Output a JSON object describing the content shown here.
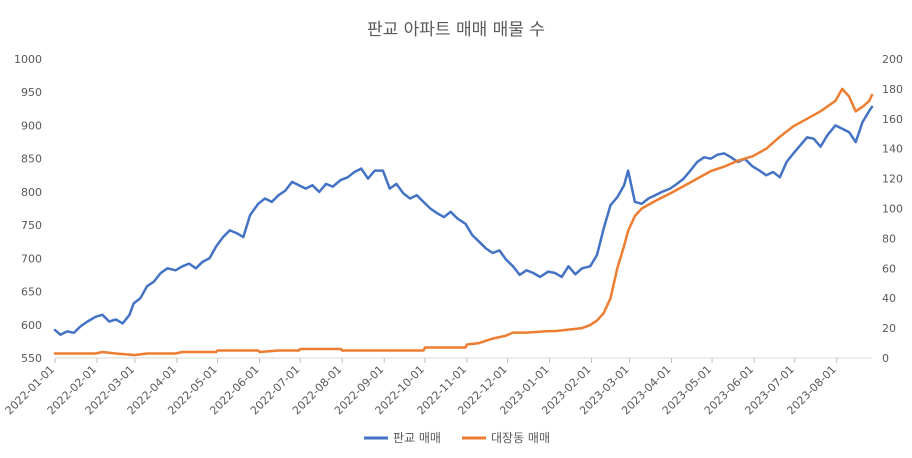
{
  "chart_data": {
    "type": "line",
    "title": "판교 아파트 매매 매물 수",
    "y_left": {
      "min": 550,
      "max": 1000,
      "ticks": [
        550,
        600,
        650,
        700,
        750,
        800,
        850,
        900,
        950,
        1000
      ]
    },
    "y_right": {
      "min": 0,
      "max": 200,
      "ticks": [
        0,
        20,
        40,
        60,
        80,
        100,
        120,
        140,
        160,
        180,
        200
      ]
    },
    "x_range": [
      "2022-01-01",
      "2023-08-27"
    ],
    "x_ticks": [
      "2022-01-01",
      "2022-02-01",
      "2022-03-01",
      "2022-04-01",
      "2022-05-01",
      "2022-06-01",
      "2022-07-01",
      "2022-08-01",
      "2022-09-01",
      "2022-10-01",
      "2022-11-01",
      "2022-12-01",
      "2023-01-01",
      "2023-02-01",
      "2023-03-01",
      "2023-04-01",
      "2023-05-01",
      "2023-06-01",
      "2023-07-01",
      "2023-08-01"
    ],
    "legend_position": "bottom",
    "grid": false,
    "series": [
      {
        "name": "판교 매매",
        "axis": "left",
        "color": "#4472C4",
        "points": [
          [
            "2022-01-01",
            592
          ],
          [
            "2022-01-05",
            585
          ],
          [
            "2022-01-10",
            590
          ],
          [
            "2022-01-15",
            588
          ],
          [
            "2022-01-20",
            598
          ],
          [
            "2022-01-25",
            605
          ],
          [
            "2022-01-31",
            612
          ],
          [
            "2022-02-05",
            615
          ],
          [
            "2022-02-10",
            605
          ],
          [
            "2022-02-15",
            608
          ],
          [
            "2022-02-20",
            602
          ],
          [
            "2022-02-25",
            615
          ],
          [
            "2022-02-28",
            632
          ],
          [
            "2022-03-05",
            640
          ],
          [
            "2022-03-10",
            658
          ],
          [
            "2022-03-15",
            665
          ],
          [
            "2022-03-20",
            678
          ],
          [
            "2022-03-25",
            685
          ],
          [
            "2022-03-31",
            682
          ],
          [
            "2022-04-05",
            688
          ],
          [
            "2022-04-10",
            692
          ],
          [
            "2022-04-15",
            685
          ],
          [
            "2022-04-20",
            695
          ],
          [
            "2022-04-25",
            700
          ],
          [
            "2022-04-30",
            718
          ],
          [
            "2022-05-05",
            732
          ],
          [
            "2022-05-10",
            742
          ],
          [
            "2022-05-15",
            738
          ],
          [
            "2022-05-20",
            732
          ],
          [
            "2022-05-25",
            765
          ],
          [
            "2022-05-31",
            782
          ],
          [
            "2022-06-05",
            790
          ],
          [
            "2022-06-10",
            785
          ],
          [
            "2022-06-15",
            795
          ],
          [
            "2022-06-20",
            802
          ],
          [
            "2022-06-25",
            815
          ],
          [
            "2022-06-30",
            810
          ],
          [
            "2022-07-05",
            805
          ],
          [
            "2022-07-10",
            810
          ],
          [
            "2022-07-15",
            800
          ],
          [
            "2022-07-20",
            812
          ],
          [
            "2022-07-25",
            808
          ],
          [
            "2022-07-31",
            818
          ],
          [
            "2022-08-05",
            822
          ],
          [
            "2022-08-10",
            830
          ],
          [
            "2022-08-15",
            835
          ],
          [
            "2022-08-20",
            820
          ],
          [
            "2022-08-25",
            832
          ],
          [
            "2022-08-31",
            832
          ],
          [
            "2022-09-05",
            805
          ],
          [
            "2022-09-10",
            812
          ],
          [
            "2022-09-15",
            798
          ],
          [
            "2022-09-20",
            790
          ],
          [
            "2022-09-25",
            795
          ],
          [
            "2022-09-30",
            785
          ],
          [
            "2022-10-05",
            775
          ],
          [
            "2022-10-10",
            768
          ],
          [
            "2022-10-15",
            762
          ],
          [
            "2022-10-20",
            770
          ],
          [
            "2022-10-25",
            760
          ],
          [
            "2022-10-31",
            752
          ],
          [
            "2022-11-05",
            735
          ],
          [
            "2022-11-10",
            725
          ],
          [
            "2022-11-15",
            715
          ],
          [
            "2022-11-20",
            708
          ],
          [
            "2022-11-25",
            712
          ],
          [
            "2022-11-30",
            698
          ],
          [
            "2022-12-05",
            688
          ],
          [
            "2022-12-10",
            675
          ],
          [
            "2022-12-15",
            682
          ],
          [
            "2022-12-20",
            678
          ],
          [
            "2022-12-25",
            672
          ],
          [
            "2022-12-31",
            680
          ],
          [
            "2023-01-05",
            678
          ],
          [
            "2023-01-10",
            672
          ],
          [
            "2023-01-15",
            688
          ],
          [
            "2023-01-20",
            676
          ],
          [
            "2023-01-25",
            685
          ],
          [
            "2023-01-31",
            688
          ],
          [
            "2023-02-05",
            705
          ],
          [
            "2023-02-10",
            745
          ],
          [
            "2023-02-15",
            780
          ],
          [
            "2023-02-20",
            792
          ],
          [
            "2023-02-25",
            810
          ],
          [
            "2023-02-28",
            832
          ],
          [
            "2023-03-05",
            785
          ],
          [
            "2023-03-10",
            782
          ],
          [
            "2023-03-15",
            790
          ],
          [
            "2023-03-20",
            795
          ],
          [
            "2023-03-25",
            800
          ],
          [
            "2023-03-31",
            805
          ],
          [
            "2023-04-05",
            812
          ],
          [
            "2023-04-10",
            820
          ],
          [
            "2023-04-15",
            832
          ],
          [
            "2023-04-20",
            845
          ],
          [
            "2023-04-25",
            852
          ],
          [
            "2023-04-30",
            850
          ],
          [
            "2023-05-05",
            856
          ],
          [
            "2023-05-10",
            858
          ],
          [
            "2023-05-15",
            852
          ],
          [
            "2023-05-20",
            845
          ],
          [
            "2023-05-25",
            850
          ],
          [
            "2023-05-31",
            838
          ],
          [
            "2023-06-05",
            832
          ],
          [
            "2023-06-10",
            825
          ],
          [
            "2023-06-15",
            830
          ],
          [
            "2023-06-20",
            822
          ],
          [
            "2023-06-25",
            845
          ],
          [
            "2023-06-30",
            858
          ],
          [
            "2023-07-05",
            870
          ],
          [
            "2023-07-10",
            882
          ],
          [
            "2023-07-15",
            880
          ],
          [
            "2023-07-20",
            868
          ],
          [
            "2023-07-25",
            885
          ],
          [
            "2023-07-31",
            900
          ],
          [
            "2023-08-05",
            895
          ],
          [
            "2023-08-10",
            890
          ],
          [
            "2023-08-15",
            875
          ],
          [
            "2023-08-20",
            905
          ],
          [
            "2023-08-25",
            922
          ],
          [
            "2023-08-27",
            928
          ]
        ]
      },
      {
        "name": "대장동 매매",
        "axis": "right",
        "color": "#ED7D31",
        "points": [
          [
            "2022-01-01",
            3
          ],
          [
            "2022-01-15",
            3
          ],
          [
            "2022-01-31",
            3
          ],
          [
            "2022-02-05",
            4
          ],
          [
            "2022-02-15",
            3
          ],
          [
            "2022-02-28",
            2
          ],
          [
            "2022-03-01",
            2
          ],
          [
            "2022-03-10",
            3
          ],
          [
            "2022-03-31",
            3
          ],
          [
            "2022-04-05",
            4
          ],
          [
            "2022-04-30",
            4
          ],
          [
            "2022-05-01",
            5
          ],
          [
            "2022-05-31",
            5
          ],
          [
            "2022-06-01",
            4
          ],
          [
            "2022-06-15",
            5
          ],
          [
            "2022-06-30",
            5
          ],
          [
            "2022-07-01",
            6
          ],
          [
            "2022-07-31",
            6
          ],
          [
            "2022-08-01",
            5
          ],
          [
            "2022-08-31",
            5
          ],
          [
            "2022-09-15",
            5
          ],
          [
            "2022-09-30",
            5
          ],
          [
            "2022-10-01",
            7
          ],
          [
            "2022-10-31",
            7
          ],
          [
            "2022-11-01",
            9
          ],
          [
            "2022-11-10",
            10
          ],
          [
            "2022-11-20",
            13
          ],
          [
            "2022-11-30",
            15
          ],
          [
            "2022-12-05",
            17
          ],
          [
            "2022-12-15",
            17
          ],
          [
            "2022-12-31",
            18
          ],
          [
            "2023-01-05",
            18
          ],
          [
            "2023-01-15",
            19
          ],
          [
            "2023-01-25",
            20
          ],
          [
            "2023-01-31",
            22
          ],
          [
            "2023-02-05",
            25
          ],
          [
            "2023-02-10",
            30
          ],
          [
            "2023-02-15",
            40
          ],
          [
            "2023-02-20",
            60
          ],
          [
            "2023-02-25",
            75
          ],
          [
            "2023-02-28",
            85
          ],
          [
            "2023-03-05",
            95
          ],
          [
            "2023-03-10",
            100
          ],
          [
            "2023-03-20",
            105
          ],
          [
            "2023-03-31",
            110
          ],
          [
            "2023-04-10",
            115
          ],
          [
            "2023-04-20",
            120
          ],
          [
            "2023-04-30",
            125
          ],
          [
            "2023-05-10",
            128
          ],
          [
            "2023-05-20",
            132
          ],
          [
            "2023-05-31",
            135
          ],
          [
            "2023-06-10",
            140
          ],
          [
            "2023-06-20",
            148
          ],
          [
            "2023-06-30",
            155
          ],
          [
            "2023-07-10",
            160
          ],
          [
            "2023-07-20",
            165
          ],
          [
            "2023-07-31",
            172
          ],
          [
            "2023-08-05",
            180
          ],
          [
            "2023-08-10",
            175
          ],
          [
            "2023-08-15",
            165
          ],
          [
            "2023-08-20",
            168
          ],
          [
            "2023-08-25",
            172
          ],
          [
            "2023-08-27",
            176
          ]
        ]
      }
    ]
  }
}
